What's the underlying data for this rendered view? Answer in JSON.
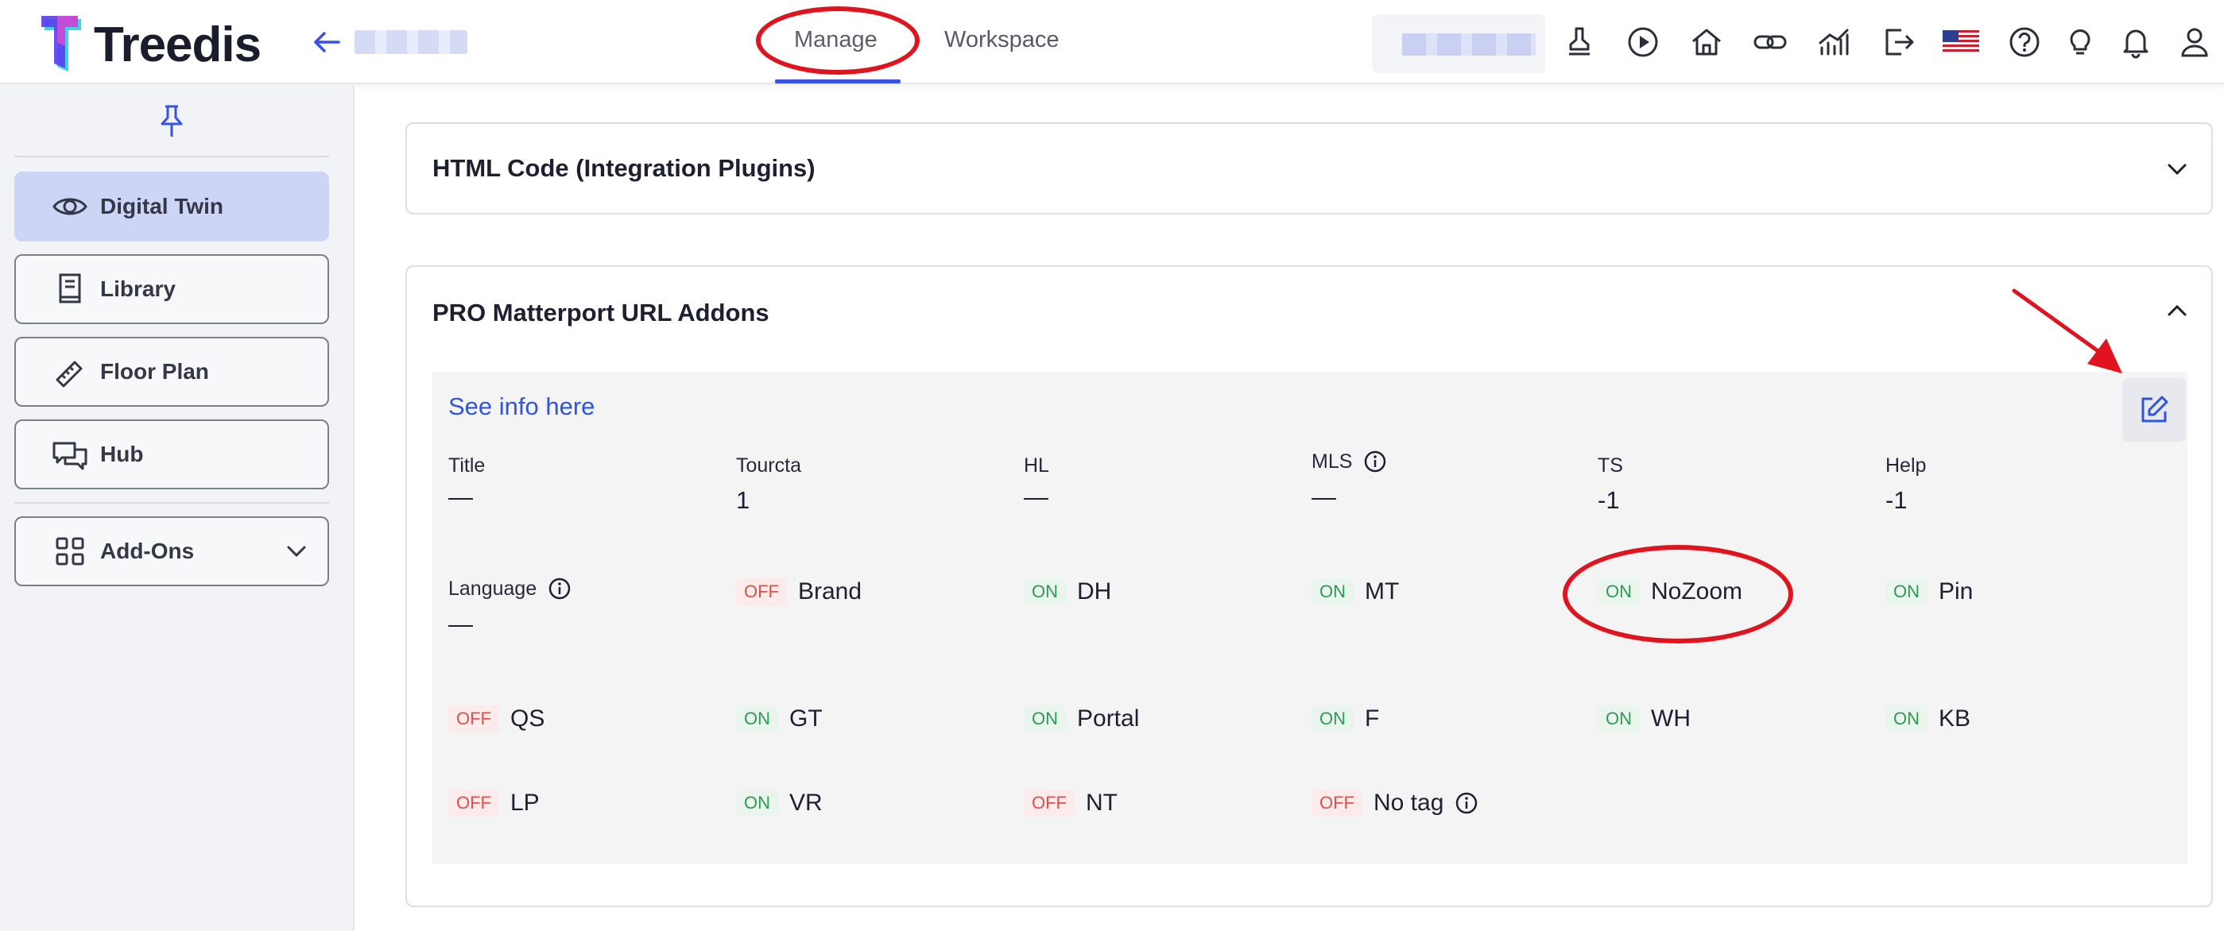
{
  "header": {
    "brand": "Treedis",
    "tabs": [
      {
        "label": "Manage",
        "active": true
      },
      {
        "label": "Workspace",
        "active": false
      }
    ],
    "icons": [
      "stamp-icon",
      "play-icon",
      "home-icon",
      "link-icon",
      "analytics-icon",
      "export-icon",
      "us-flag-icon",
      "help-icon",
      "lightbulb-icon",
      "bell-icon",
      "user-icon"
    ]
  },
  "sidebar": {
    "items": [
      {
        "label": "Digital Twin",
        "icon": "eye-icon",
        "active": true
      },
      {
        "label": "Library",
        "icon": "book-icon"
      },
      {
        "label": "Floor Plan",
        "icon": "ruler-icon"
      },
      {
        "label": "Hub",
        "icon": "chat-icon"
      }
    ],
    "addons": {
      "label": "Add-Ons",
      "icon": "grid-icon"
    }
  },
  "main": {
    "html_card": {
      "title": "HTML Code (Integration Plugins)"
    },
    "pro_card": {
      "title": "PRO Matterport URL Addons",
      "link": "See info here",
      "fields": [
        {
          "label": "Title",
          "value": "—"
        },
        {
          "label": "Tourcta",
          "value": "1"
        },
        {
          "label": "HL",
          "value": "—"
        },
        {
          "label": "MLS",
          "value": "—",
          "info": true
        },
        {
          "label": "TS",
          "value": "-1"
        },
        {
          "label": "Help",
          "value": "-1"
        }
      ],
      "language": {
        "label": "Language",
        "value": "—"
      },
      "toggles": [
        {
          "state": "OFF",
          "name": "Brand"
        },
        {
          "state": "ON",
          "name": "DH"
        },
        {
          "state": "ON",
          "name": "MT"
        },
        {
          "state": "ON",
          "name": "NoZoom"
        },
        {
          "state": "ON",
          "name": "Pin"
        },
        {
          "state": "OFF",
          "name": "QS"
        },
        {
          "state": "ON",
          "name": "GT"
        },
        {
          "state": "ON",
          "name": "Portal"
        },
        {
          "state": "ON",
          "name": "F"
        },
        {
          "state": "ON",
          "name": "WH"
        },
        {
          "state": "ON",
          "name": "KB"
        },
        {
          "state": "OFF",
          "name": "LP"
        },
        {
          "state": "ON",
          "name": "VR"
        },
        {
          "state": "OFF",
          "name": "NT"
        },
        {
          "state": "OFF",
          "name": "No tag"
        }
      ]
    }
  },
  "colors": {
    "accent": "#3852e6",
    "on": "#2f9a52",
    "off": "#e0504a",
    "annotation": "#e0141e"
  }
}
